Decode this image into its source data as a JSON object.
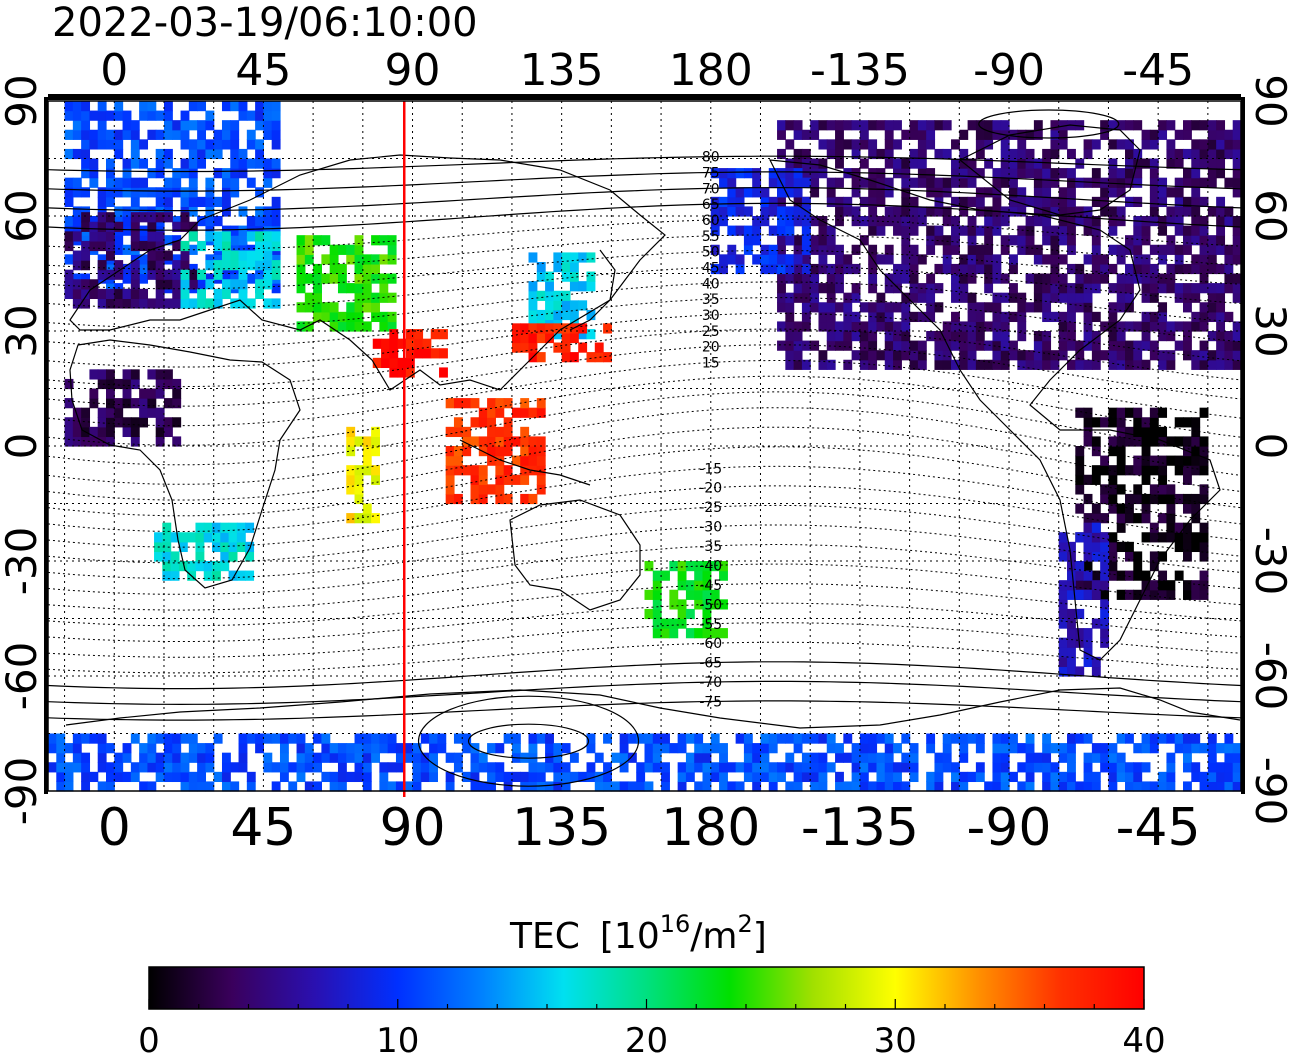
{
  "timestamp": "2022-03-19/06:10:00",
  "lon_axis": {
    "ticks": [
      0,
      45,
      90,
      135,
      180,
      -135,
      -90,
      -45
    ],
    "labels": [
      "0",
      "45",
      "90",
      "135",
      "180",
      "-135",
      "-90",
      "-45"
    ],
    "range": [
      -20,
      340
    ]
  },
  "lat_axis": {
    "ticks": [
      90,
      60,
      30,
      0,
      -30,
      -60,
      -90
    ],
    "labels": [
      "90",
      "60",
      "30",
      "0",
      "-30",
      "-60",
      "-90"
    ],
    "range": [
      -90,
      90
    ]
  },
  "contour_labels": {
    "north": [
      "80",
      "75",
      "70",
      "65",
      "60",
      "55",
      "50",
      "45",
      "40",
      "35",
      "30",
      "25",
      "20",
      "15"
    ],
    "south": [
      "-15",
      "-20",
      "-25",
      "-30",
      "-35",
      "-40",
      "-45",
      "-50",
      "-55",
      "-60",
      "-65",
      "-70",
      "-75"
    ]
  },
  "subsolar_longitude": 87.5,
  "colorbar": {
    "title": "TEC",
    "unit_base": "[10",
    "unit_exp": "16",
    "unit_mid": "/m",
    "unit_exp2": "2",
    "unit_close": "]",
    "min": 0,
    "max": 40,
    "tick_values": [
      0,
      10,
      20,
      30,
      40
    ],
    "tick_labels": [
      "0",
      "10",
      "20",
      "30",
      "40"
    ],
    "colors": [
      "#000000",
      "#3a005c",
      "#2a10b0",
      "#0030ff",
      "#0080ff",
      "#00e0f0",
      "#00e080",
      "#00e000",
      "#a0e000",
      "#ffff00",
      "#ff9000",
      "#ff3000",
      "#ff0000"
    ]
  },
  "chart_data": {
    "type": "heatmap",
    "title": "2022-03-19/06:10:00",
    "xlabel": "",
    "ylabel": "",
    "colorbar_label": "TEC [10^16/m^2]",
    "xlim": [
      -20,
      340
    ],
    "ylim": [
      -90,
      90
    ],
    "x_ticks": [
      "0",
      "45",
      "90",
      "135",
      "180",
      "-135",
      "-90",
      "-45"
    ],
    "y_ticks": [
      "90",
      "60",
      "30",
      "0",
      "-30",
      "-60",
      "-90"
    ],
    "clim": [
      0,
      40
    ],
    "regions": [
      {
        "lon": [
          -15,
          50
        ],
        "lat": [
          40,
          88
        ],
        "tec": 11
      },
      {
        "lon": [
          -15,
          25
        ],
        "lat": [
          36,
          60
        ],
        "tec": 4
      },
      {
        "lon": [
          20,
          50
        ],
        "lat": [
          36,
          56
        ],
        "tec": 17
      },
      {
        "lon": [
          55,
          85
        ],
        "lat": [
          30,
          55
        ],
        "tec": 24
      },
      {
        "lon": [
          125,
          145
        ],
        "lat": [
          28,
          50
        ],
        "tec": 16
      },
      {
        "lon": [
          120,
          150
        ],
        "lat": [
          22,
          32
        ],
        "tec": 38
      },
      {
        "lon": [
          78,
          100
        ],
        "lat": [
          18,
          30
        ],
        "tec": 39
      },
      {
        "lon": [
          100,
          130
        ],
        "lat": [
          -15,
          12
        ],
        "tec": 37
      },
      {
        "lon": [
          200,
          340
        ],
        "lat": [
          20,
          85
        ],
        "tec": 4
      },
      {
        "lon": [
          180,
          210
        ],
        "lat": [
          45,
          72
        ],
        "tec": 9
      },
      {
        "lon": [
          290,
          330
        ],
        "lat": [
          -40,
          10
        ],
        "tec": 1
      },
      {
        "lon": [
          285,
          300
        ],
        "lat": [
          -60,
          -20
        ],
        "tec": 7
      },
      {
        "lon": [
          12,
          40
        ],
        "lat": [
          -35,
          -20
        ],
        "tec": 17
      },
      {
        "lon": [
          160,
          185
        ],
        "lat": [
          -50,
          -30
        ],
        "tec": 23
      },
      {
        "lon": [
          -20,
          340
        ],
        "lat": [
          -90,
          -75
        ],
        "tec": 11
      },
      {
        "lon": [
          -15,
          20
        ],
        "lat": [
          0,
          20
        ],
        "tec": 3
      },
      {
        "lon": [
          70,
          80
        ],
        "lat": [
          -20,
          5
        ],
        "tec": 30
      }
    ]
  }
}
